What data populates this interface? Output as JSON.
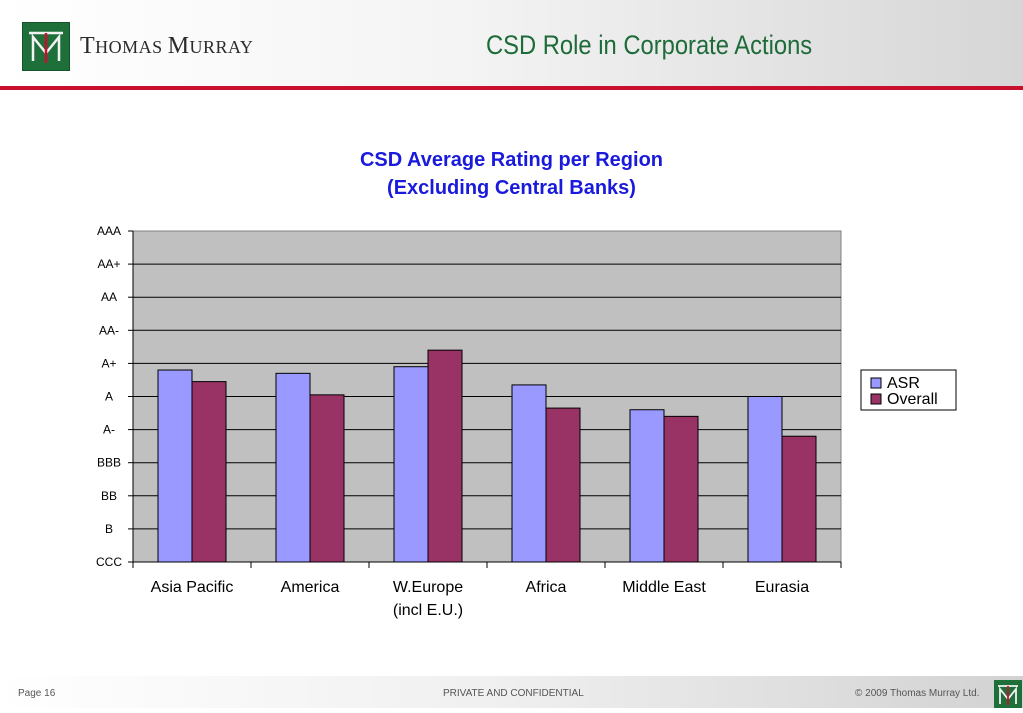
{
  "brand": {
    "name_first": "T",
    "name_rest1": "HOMAS ",
    "name_m": "M",
    "name_rest2": "URRAY"
  },
  "slide": {
    "title": "CSD Role in Corporate Actions"
  },
  "colors": {
    "brand_green": "#1f6f3a",
    "title_green": "#1e6b3a",
    "rule_red": "#c8102e",
    "chart_title_blue": "#1a1adc",
    "plot_bg": "#c0c0c0"
  },
  "chart_data": {
    "type": "bar",
    "title_line1": "CSD Average Rating per Region",
    "title_line2": "(Excluding Central Banks)",
    "categories": [
      {
        "line1": "Asia Pacific",
        "line2": ""
      },
      {
        "line1": "America",
        "line2": ""
      },
      {
        "line1": "W.Europe",
        "line2": "(incl E.U.)"
      },
      {
        "line1": "Africa",
        "line2": ""
      },
      {
        "line1": "Middle East",
        "line2": ""
      },
      {
        "line1": "Eurasia",
        "line2": ""
      }
    ],
    "ytick_labels": [
      "CCC",
      "B",
      "BB",
      "BBB",
      "A-",
      "A",
      "A+",
      "AA-",
      "AA",
      "AA+",
      "AAA"
    ],
    "ylim": [
      0,
      10
    ],
    "series": [
      {
        "name": "ASR",
        "color": "#9999ff",
        "values": [
          5.8,
          5.7,
          5.9,
          5.35,
          4.6,
          5.0
        ]
      },
      {
        "name": "Overall",
        "color": "#993366",
        "values": [
          5.45,
          5.05,
          6.4,
          4.65,
          4.4,
          3.8
        ]
      }
    ],
    "grid": true,
    "legend_position": "right"
  },
  "footer": {
    "page": "Page 16",
    "confidential": "PRIVATE AND CONFIDENTIAL",
    "copyright": "© 2009 Thomas Murray Ltd."
  }
}
